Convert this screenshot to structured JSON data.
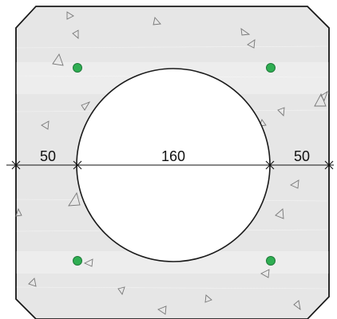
{
  "diagram": {
    "dimensions": {
      "left": "50",
      "center": "160",
      "right": "50"
    },
    "colors": {
      "concrete": "#e6e6e6",
      "concrete_band": "#ededed",
      "outline": "#1a1a1a",
      "rebar": "#2fae52",
      "rebar_stroke": "#1f7a3a",
      "void": "#ffffff"
    },
    "icons": {
      "rebar": "rebar-dot-icon",
      "aggregate": "aggregate-triangle-icon"
    }
  }
}
